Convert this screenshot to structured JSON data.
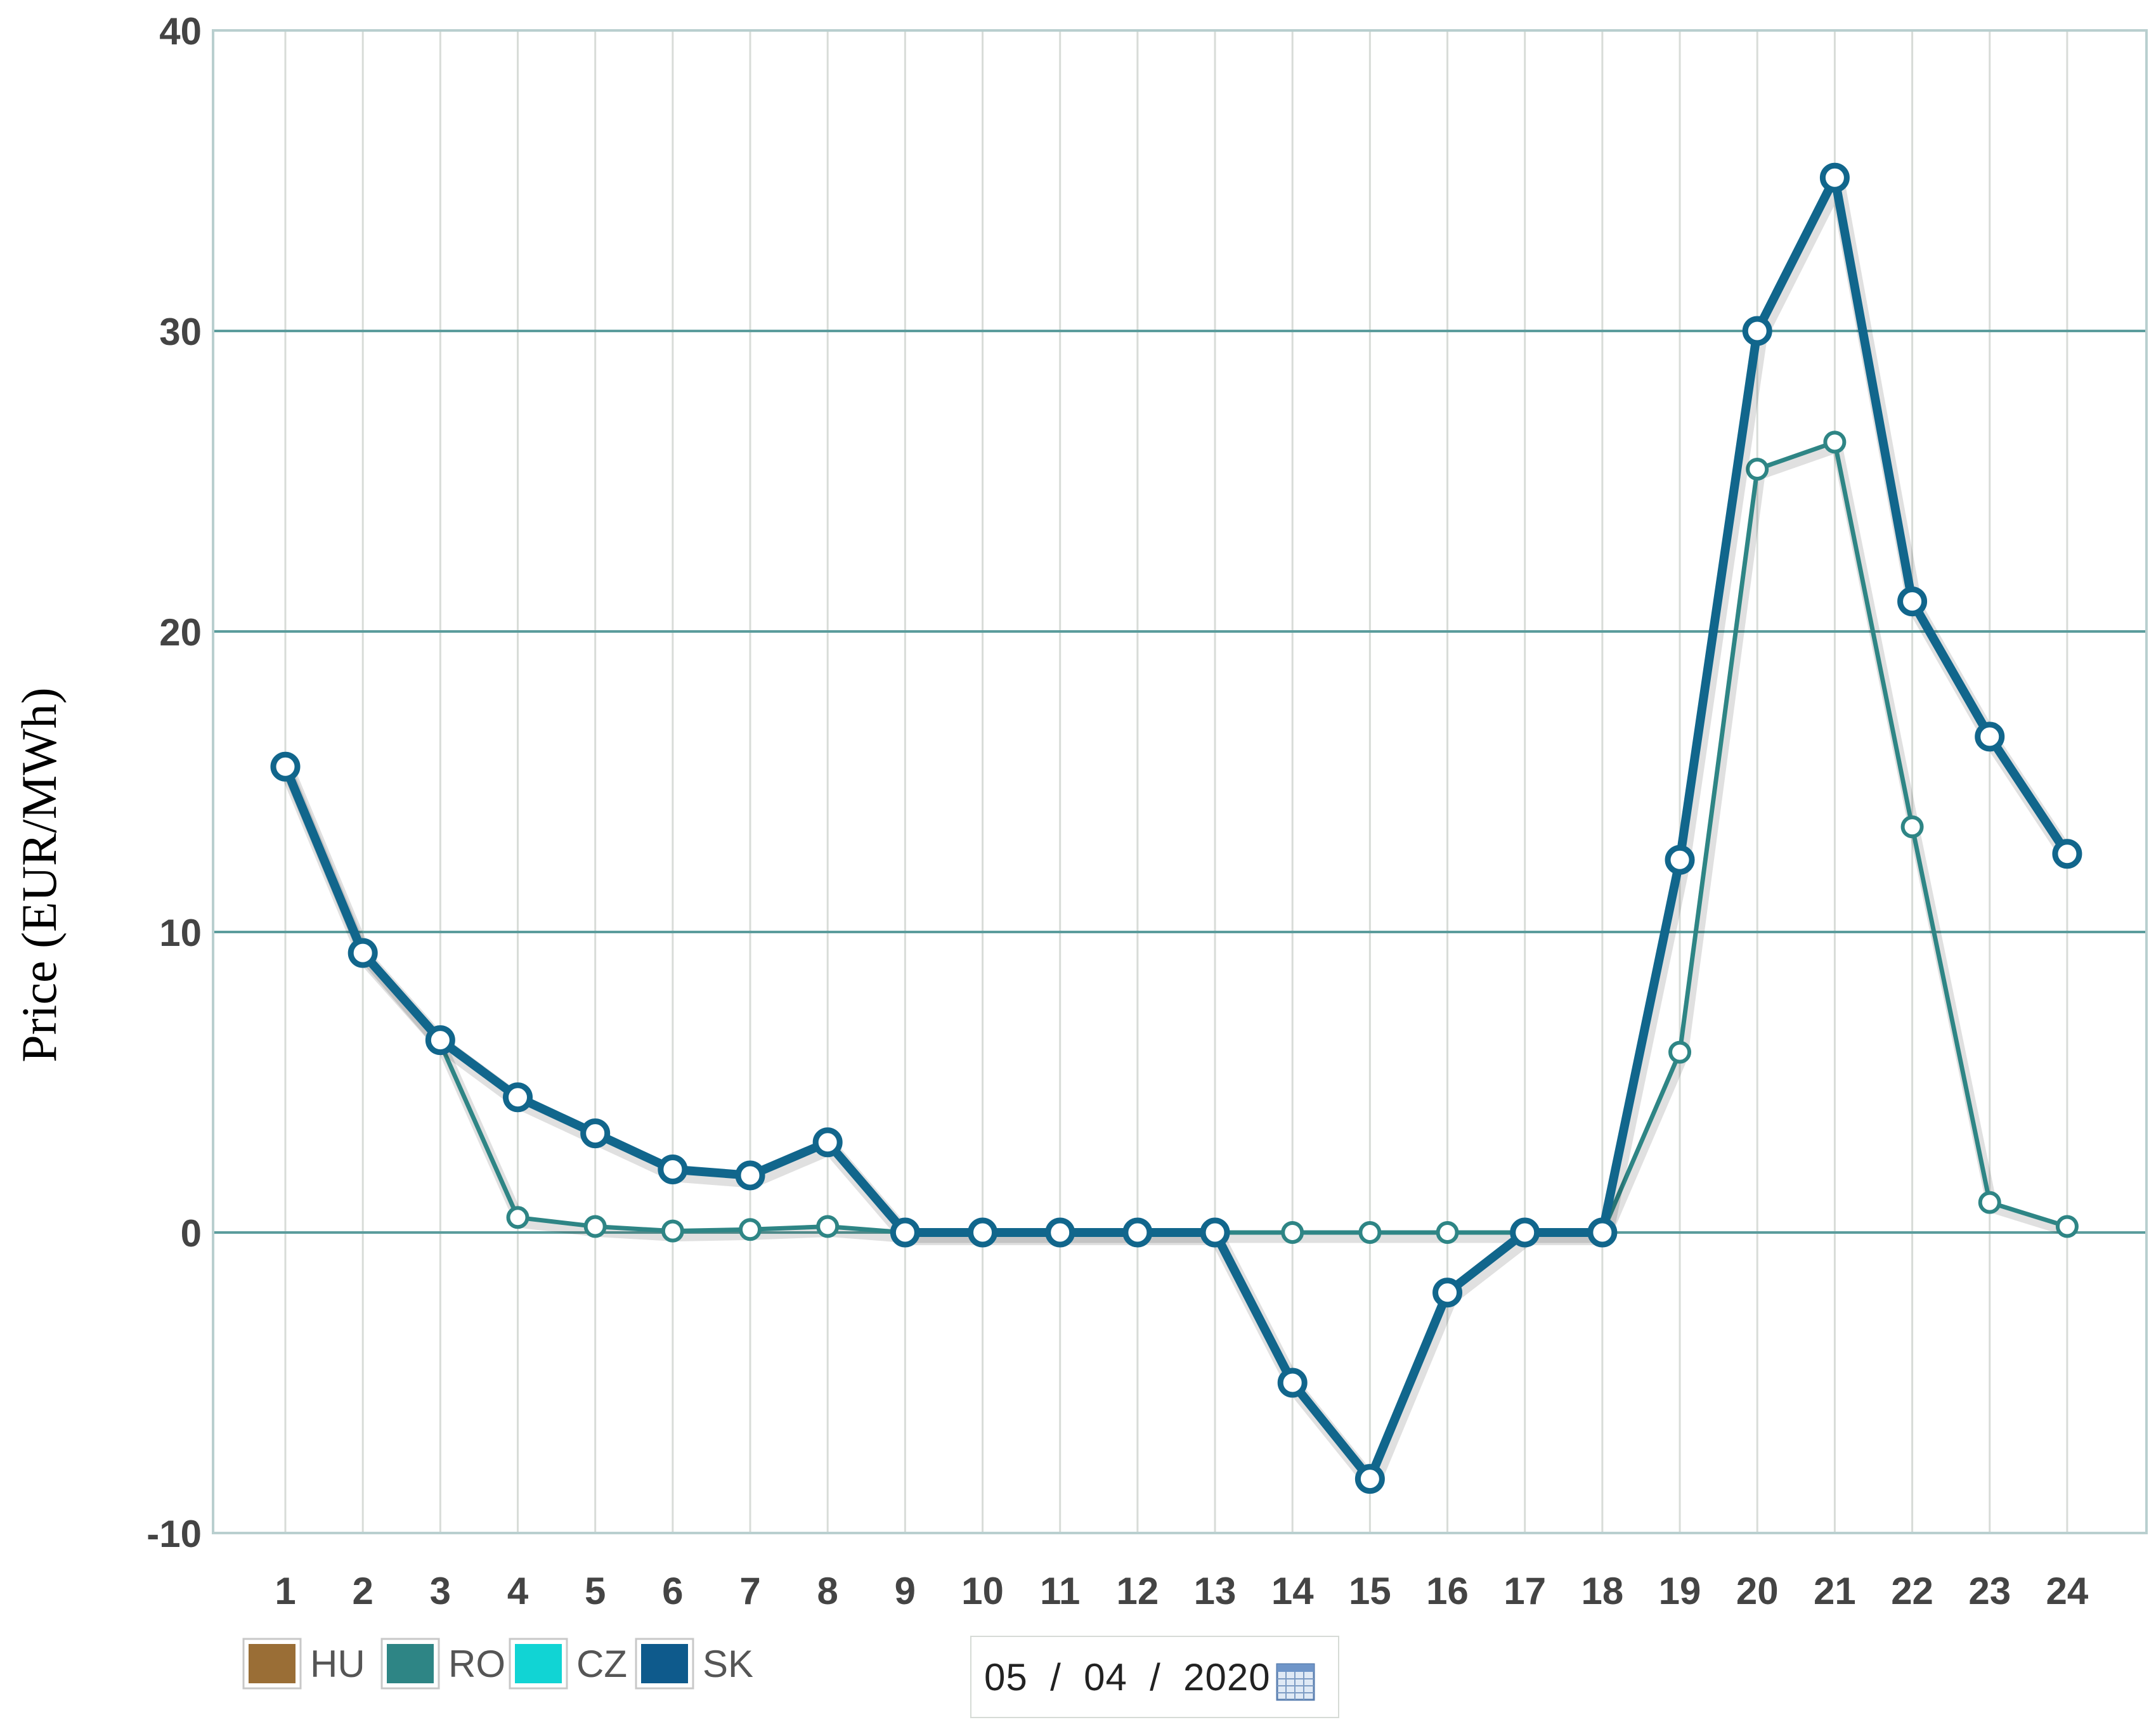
{
  "chart_data": {
    "type": "line",
    "title": "",
    "xlabel": "",
    "ylabel": "Price (EUR/MWh)",
    "ylim": [
      -10,
      40
    ],
    "yticks": [
      40,
      30,
      20,
      10,
      0,
      -10
    ],
    "categories": [
      "1",
      "2",
      "3",
      "4",
      "5",
      "6",
      "7",
      "8",
      "9",
      "10",
      "11",
      "12",
      "13",
      "14",
      "15",
      "16",
      "17",
      "18",
      "19",
      "20",
      "21",
      "22",
      "23",
      "24"
    ],
    "series": [
      {
        "name": "RO",
        "color": "#2e8585",
        "values": [
          15.5,
          9.3,
          6.3,
          0.5,
          0.2,
          0.05,
          0.1,
          0.2,
          0,
          0,
          0,
          0,
          0,
          0,
          0,
          0,
          0,
          0,
          6.0,
          25.4,
          26.3,
          13.5,
          1.0,
          0.2
        ]
      },
      {
        "name": "SK",
        "color": "#11668c",
        "values": [
          15.5,
          9.3,
          6.4,
          4.5,
          3.3,
          2.1,
          1.9,
          3.0,
          0,
          0,
          0,
          0,
          0,
          -5.0,
          -8.2,
          -2.0,
          0,
          0,
          12.4,
          30.0,
          35.1,
          21.0,
          16.5,
          12.6
        ]
      }
    ],
    "legend": {
      "placement": "bottom-left",
      "items": [
        {
          "label": "HU",
          "color": "#9a6e36"
        },
        {
          "label": "RO",
          "color": "#2e8585"
        },
        {
          "label": "CZ",
          "color": "#11d4d4"
        },
        {
          "label": "SK",
          "color": "#0e5a8c"
        }
      ]
    },
    "grid": true
  },
  "date_picker": {
    "value": "05  /  04  /  2020",
    "icon": "calendar-icon"
  }
}
